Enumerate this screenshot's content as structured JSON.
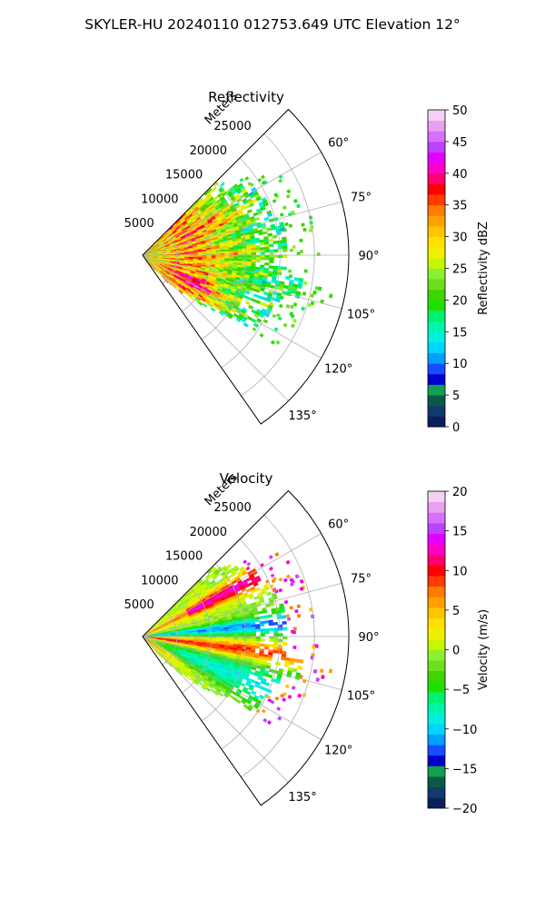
{
  "figure_title": "SKYLER-HU  20240110  012753.649 UTC Elevation 12°",
  "chart_data": [
    {
      "type": "heatmap",
      "projection": "polar-sector",
      "title": "Reflectivity",
      "radial_label": "Meters",
      "radial_ticks": [
        5000,
        10000,
        15000,
        20000,
        25000
      ],
      "radial_tick_labels": [
        "5000",
        "10000",
        "15000",
        "20000",
        "25000"
      ],
      "theta_ticks": [
        60,
        75,
        90,
        105,
        120,
        135
      ],
      "theta_tick_labels": [
        "60°",
        "75°",
        "90°",
        "105°",
        "120°",
        "135°"
      ],
      "theta_range_deg": [
        45,
        145
      ],
      "r_max": 30000,
      "grid": true,
      "colorbar": {
        "label": "Reflectivity dBZ",
        "range": [
          0,
          50
        ],
        "ticks": [
          0,
          5,
          10,
          15,
          20,
          25,
          30,
          35,
          40,
          45,
          50
        ],
        "tick_labels": [
          "0",
          "5",
          "10",
          "15",
          "20",
          "25",
          "30",
          "35",
          "40",
          "45",
          "50"
        ],
        "colors": [
          "#0a1f5c",
          "#123a6e",
          "#0b5a46",
          "#0fa050",
          "#0000cc",
          "#1a4cff",
          "#00a0ff",
          "#00d4ff",
          "#00f0dd",
          "#00f5a8",
          "#00f070",
          "#1ee000",
          "#40d400",
          "#6ae01e",
          "#8cf030",
          "#c8f500",
          "#eef000",
          "#ffe000",
          "#ffc400",
          "#ffa000",
          "#ff7a00",
          "#ff3c00",
          "#ff0000",
          "#ff0070",
          "#ff00c8",
          "#e400ff",
          "#c040ff",
          "#d870ff",
          "#e8a0f0",
          "#f4d0f4"
        ]
      },
      "data_description": "reflectivity field across sector; values mostly 20–38 dBZ, strongest (35–40 dBZ) near radar and in bands at ~5000–15000 m"
    },
    {
      "type": "heatmap",
      "projection": "polar-sector",
      "title": "Velocity",
      "radial_label": "Meters",
      "radial_ticks": [
        5000,
        10000,
        15000,
        20000,
        25000
      ],
      "radial_tick_labels": [
        "5000",
        "10000",
        "15000",
        "20000",
        "25000"
      ],
      "theta_ticks": [
        60,
        75,
        90,
        105,
        120,
        135
      ],
      "theta_tick_labels": [
        "60°",
        "75°",
        "90°",
        "105°",
        "120°",
        "135°"
      ],
      "theta_range_deg": [
        45,
        145
      ],
      "r_max": 30000,
      "grid": true,
      "colorbar": {
        "label": "Velocity (m/s)",
        "range": [
          -20,
          20
        ],
        "ticks": [
          -20,
          -15,
          -10,
          -5,
          0,
          5,
          10,
          15,
          20
        ],
        "tick_labels": [
          "−20",
          "−15",
          "−10",
          "−5",
          "0",
          "5",
          "10",
          "15",
          "20"
        ],
        "colors": [
          "#0a1f5c",
          "#123a6e",
          "#0b5a46",
          "#0fa050",
          "#0000cc",
          "#1a4cff",
          "#00a0ff",
          "#00d4ff",
          "#00f0dd",
          "#00f5a8",
          "#00f070",
          "#1ee000",
          "#40d400",
          "#6ae01e",
          "#8cf030",
          "#c8f500",
          "#eef000",
          "#ffe000",
          "#ffc400",
          "#ffa000",
          "#ff7a00",
          "#ff3c00",
          "#ff0000",
          "#ff0070",
          "#ff00c8",
          "#e400ff",
          "#c040ff",
          "#d870ff",
          "#e8a0f0",
          "#f4d0f4"
        ]
      },
      "data_description": "radial velocity: positive (red/magenta, up to ~15 m/s) along north edge and band near 95–100°, negative (green/cyan, down to ~-10 m/s) near 85° and south portion"
    }
  ]
}
